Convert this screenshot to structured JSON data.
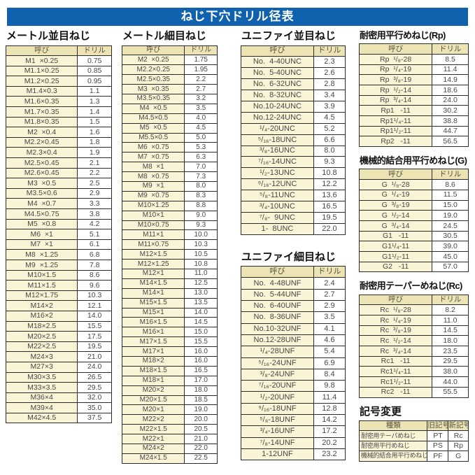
{
  "title": "ねじ下穴ドリル径表",
  "labels": {
    "name_header": "呼び",
    "drill_header": "ドリル"
  },
  "colors": {
    "title_bar_blue": "#1062AE",
    "header_cell_yellow": "#EDE4B6",
    "name_cell_cream": "#FAF4D6",
    "border": "#2b2b2b"
  },
  "tables": [
    {
      "heading": "メートル並目ねじ",
      "rows": [
        [
          "M1  ×0.25",
          "0.75"
        ],
        [
          "M1.1×0.25",
          "0.85"
        ],
        [
          "M1.2×0.25",
          "0.95"
        ],
        [
          "M1.4×0.3",
          "1.1"
        ],
        [
          "M1.6×0.35",
          "1.3"
        ],
        [
          "M1.7×0.35",
          "1.4"
        ],
        [
          "M1.8×0.35",
          "1.5"
        ],
        [
          "M2  ×0.4",
          "1.6"
        ],
        [
          "M2.2×0.45",
          "1.8"
        ],
        [
          "M2.3×0.4",
          "1.9"
        ],
        [
          "M2.5×0.45",
          "2.1"
        ],
        [
          "M2.6×0.45",
          "2.2"
        ],
        [
          "M3  ×0.5",
          "2.5"
        ],
        [
          "M3.5×0.6",
          "2.9"
        ],
        [
          "M4  ×0.7",
          "3.3"
        ],
        [
          "M4.5×0.75",
          "3.8"
        ],
        [
          "M5  ×0.8",
          "4.2"
        ],
        [
          "M6  ×1",
          "5.1"
        ],
        [
          "M7  ×1",
          "6.1"
        ],
        [
          "M8  ×1.25",
          "6.8"
        ],
        [
          "M9  ×1.25",
          "7.8"
        ],
        [
          "M10×1.5",
          "8.6"
        ],
        [
          "M11×1.5",
          "9.6"
        ],
        [
          "M12×1.75",
          "10.3"
        ],
        [
          "M14×2",
          "12.1"
        ],
        [
          "M16×2",
          "14.0"
        ],
        [
          "M18×2.5",
          "15.5"
        ],
        [
          "M20×2.5",
          "17.5"
        ],
        [
          "M22×2.5",
          "19.5"
        ],
        [
          "M24×3",
          "21.0"
        ],
        [
          "M27×3",
          "24.0"
        ],
        [
          "M30×3.5",
          "26.5"
        ],
        [
          "M33×3.5",
          "29.5"
        ],
        [
          "M36×4",
          "32.0"
        ],
        [
          "M39×4",
          "35.0"
        ],
        [
          "M42×4.5",
          "37.5"
        ]
      ]
    },
    {
      "heading": "メートル細目ねじ",
      "rows": [
        [
          "M2  ×0.25",
          "1.75"
        ],
        [
          "M2.2×0.25",
          "1.95"
        ],
        [
          "M2.5×0.35",
          "2.2"
        ],
        [
          "M3  ×0.35",
          "2.7"
        ],
        [
          "M3.5×0.35",
          "3.2"
        ],
        [
          "M4  ×0.5",
          "3.5"
        ],
        [
          "M4.5×0.5",
          "4.0"
        ],
        [
          "M5  ×0.5",
          "4.5"
        ],
        [
          "M5.5×0.5",
          "5.0"
        ],
        [
          "M6  ×0.75",
          "5.3"
        ],
        [
          "M7  ×0.75",
          "6.3"
        ],
        [
          "M8  ×1",
          "7.0"
        ],
        [
          "M8  ×0.75",
          "7.3"
        ],
        [
          "M9  ×1",
          "8.0"
        ],
        [
          "M9  ×0.75",
          "8.3"
        ],
        [
          "M10×1.25",
          "8.8"
        ],
        [
          "M10×1",
          "9.0"
        ],
        [
          "M10×0.75",
          "9.3"
        ],
        [
          "M11×1",
          "10.0"
        ],
        [
          "M11×0.75",
          "10.3"
        ],
        [
          "M12×1.5",
          "10.5"
        ],
        [
          "M12×1.25",
          "10.8"
        ],
        [
          "M12×1",
          "11.0"
        ],
        [
          "M14×1.5",
          "12.5"
        ],
        [
          "M14×1",
          "13.0"
        ],
        [
          "M15×1.5",
          "13.5"
        ],
        [
          "M15×1",
          "14.0"
        ],
        [
          "M16×1.5",
          "14.5"
        ],
        [
          "M16×1",
          "15.0"
        ],
        [
          "M17×1.5",
          "15.5"
        ],
        [
          "M17×1",
          "16.0"
        ],
        [
          "M18×2",
          "16.0"
        ],
        [
          "M18×1.5",
          "16.5"
        ],
        [
          "M18×1",
          "17.0"
        ],
        [
          "M20×2",
          "18.0"
        ],
        [
          "M20×1.5",
          "18.5"
        ],
        [
          "M20×1",
          "19.0"
        ],
        [
          "M22×2",
          "20.0"
        ],
        [
          "M22×1.5",
          "20.5"
        ],
        [
          "M22×1",
          "21.0"
        ],
        [
          "M24×2",
          "22.0"
        ],
        [
          "M24×1.5",
          "22.5"
        ]
      ]
    },
    {
      "heading": "ユニファイ並目ねじ",
      "rows": [
        [
          "No.  4-40UNC",
          "2.3"
        ],
        [
          "No.  5-40UNC",
          "2.6"
        ],
        [
          "No.  6-32UNC",
          "2.8"
        ],
        [
          "No.  8-32UNC",
          "3.4"
        ],
        [
          "No.10-24UNC",
          "3.9"
        ],
        [
          "No.12-24UNC",
          "4.5"
        ],
        [
          "¹/₄-20UNC",
          "5.2"
        ],
        [
          "⁵/₁₆-18UNC",
          "6.6"
        ],
        [
          "³/₈-16UNC",
          "8.0"
        ],
        [
          "⁷/₁₆-14UNC",
          "9.3"
        ],
        [
          "¹/₂-13UNC",
          "10.8"
        ],
        [
          "⁹/₁₆-12UNC",
          "12.2"
        ],
        [
          "⁵/₈-11UNC",
          "13.6"
        ],
        [
          "³/₄-10UNC",
          "16.5"
        ],
        [
          "⁷/₈-  9UNC",
          "19.5"
        ],
        [
          "1-  8UNC",
          "22.0"
        ]
      ]
    },
    {
      "heading": "ユニファイ細目ねじ",
      "rows": [
        [
          "No.  4-48UNF",
          "2.4"
        ],
        [
          "No.  5-44UNF",
          "2.7"
        ],
        [
          "No.  6-40UNF",
          "2.9"
        ],
        [
          "No.  8-36UNF",
          "3.5"
        ],
        [
          "No.10-32UNF",
          "4.1"
        ],
        [
          "No.12-28UNF",
          "4.6"
        ],
        [
          "¹/₄-28UNF",
          "5.4"
        ],
        [
          "⁵/₁₆-24UNF",
          "6.9"
        ],
        [
          "³/₈-24UNF",
          "8.4"
        ],
        [
          "⁷/₁₆-20UNF",
          "9.8"
        ],
        [
          "¹/₂-20UNF",
          "11.4"
        ],
        [
          "⁹/₁₆-18UNF",
          "12.8"
        ],
        [
          "⁵/₈-18UNF",
          "14.2"
        ],
        [
          "³/₄-16UNF",
          "17.2"
        ],
        [
          "⁷/₈-14UNF",
          "20.2"
        ],
        [
          "1-12UNF",
          "23.2"
        ]
      ]
    },
    {
      "heading": "耐密用平行めねじ(Rp)",
      "rows": [
        [
          "Rp  ¹/₈-28",
          "8.5"
        ],
        [
          "Rp  ¹/₄-19",
          "11.4"
        ],
        [
          "Rp  ³/₈-19",
          "14.9"
        ],
        [
          "Rp  ¹/₂-14",
          "18.6"
        ],
        [
          "Rp  ³/₄-14",
          "24.0"
        ],
        [
          "Rp1   -11",
          "30.2"
        ],
        [
          "Rp1¹/₄-11",
          "38.8"
        ],
        [
          "Rp1¹/₂-11",
          "44.7"
        ],
        [
          "Rp2   -11",
          "56.5"
        ]
      ]
    },
    {
      "heading": "機械的結合用平行めねじ(G)",
      "rows": [
        [
          "G  ¹/₈-28",
          "8.6"
        ],
        [
          "G  ¹/₄-19",
          "11.5"
        ],
        [
          "G  ³/₈-19",
          "15.0"
        ],
        [
          "G  ¹/₂-14",
          "19.0"
        ],
        [
          "G  ³/₄-14",
          "24.5"
        ],
        [
          "G1   -11",
          "30.5"
        ],
        [
          "G1¹/₄-11",
          "39.0"
        ],
        [
          "G1¹/₂-11",
          "45.0"
        ],
        [
          "G2   -11",
          "57.0"
        ]
      ]
    },
    {
      "heading": "耐密用テーパーめねじ(Rc)",
      "rows": [
        [
          "Rc  ¹/₈-28",
          "8.2"
        ],
        [
          "Rc  ¹/₄-19",
          "11.0"
        ],
        [
          "Rc  ³/₈-19",
          "14.5"
        ],
        [
          "Rc  ¹/₂-14",
          "18.0"
        ],
        [
          "Rc  ³/₄-14",
          "23.5"
        ],
        [
          "Rc1   -11",
          "29.5"
        ],
        [
          "Rc1¹/₄-11",
          "38.0"
        ],
        [
          "Rc1¹/₂-11",
          "44.0"
        ],
        [
          "Rc2   -11",
          "55.5"
        ]
      ]
    }
  ],
  "symbol_change": {
    "heading": "記号変更",
    "headers": [
      "種類",
      "旧記号",
      "新記号"
    ],
    "rows": [
      [
        "耐密用テーパめねじ",
        "PT",
        "Rc"
      ],
      [
        "耐密用平行めねじ",
        "PS",
        "Rp"
      ],
      [
        "機械的結合用平行めねじ",
        "PF",
        "G"
      ]
    ]
  }
}
